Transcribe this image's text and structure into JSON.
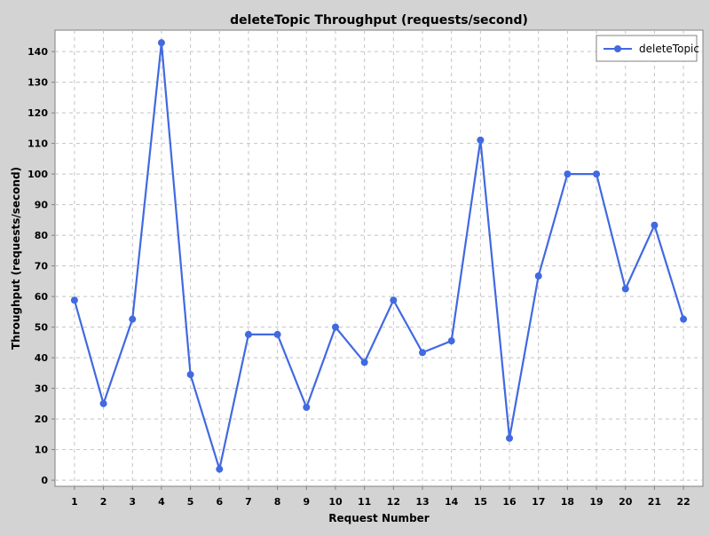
{
  "chart_data": {
    "type": "line",
    "title": "deleteTopic Throughput (requests/second)",
    "xlabel": "Request Number",
    "ylabel": "Throughput (requests/second)",
    "categories": [
      "1",
      "2",
      "3",
      "4",
      "5",
      "6",
      "7",
      "8",
      "9",
      "10",
      "11",
      "12",
      "13",
      "14",
      "15",
      "16",
      "17",
      "18",
      "19",
      "20",
      "21",
      "22"
    ],
    "series": [
      {
        "name": "deleteTopic",
        "values": [
          58.8,
          25.0,
          52.6,
          142.9,
          34.5,
          3.6,
          47.6,
          47.6,
          23.8,
          50.0,
          38.5,
          58.8,
          41.7,
          45.5,
          111.1,
          13.7,
          66.7,
          100.0,
          100.0,
          62.5,
          83.3,
          52.6
        ]
      }
    ],
    "ylim": [
      -2,
      147
    ],
    "yticks": [
      0,
      10,
      20,
      30,
      40,
      50,
      60,
      70,
      80,
      90,
      100,
      110,
      120,
      130,
      140
    ],
    "grid": true,
    "legend_position": "top-right",
    "colors": {
      "page_background": "#d3d3d3",
      "plot_background": "#ffffff",
      "grid": "#c4c4c4",
      "series": "#4169e1",
      "text": "#000000",
      "axis": "#808080"
    }
  }
}
